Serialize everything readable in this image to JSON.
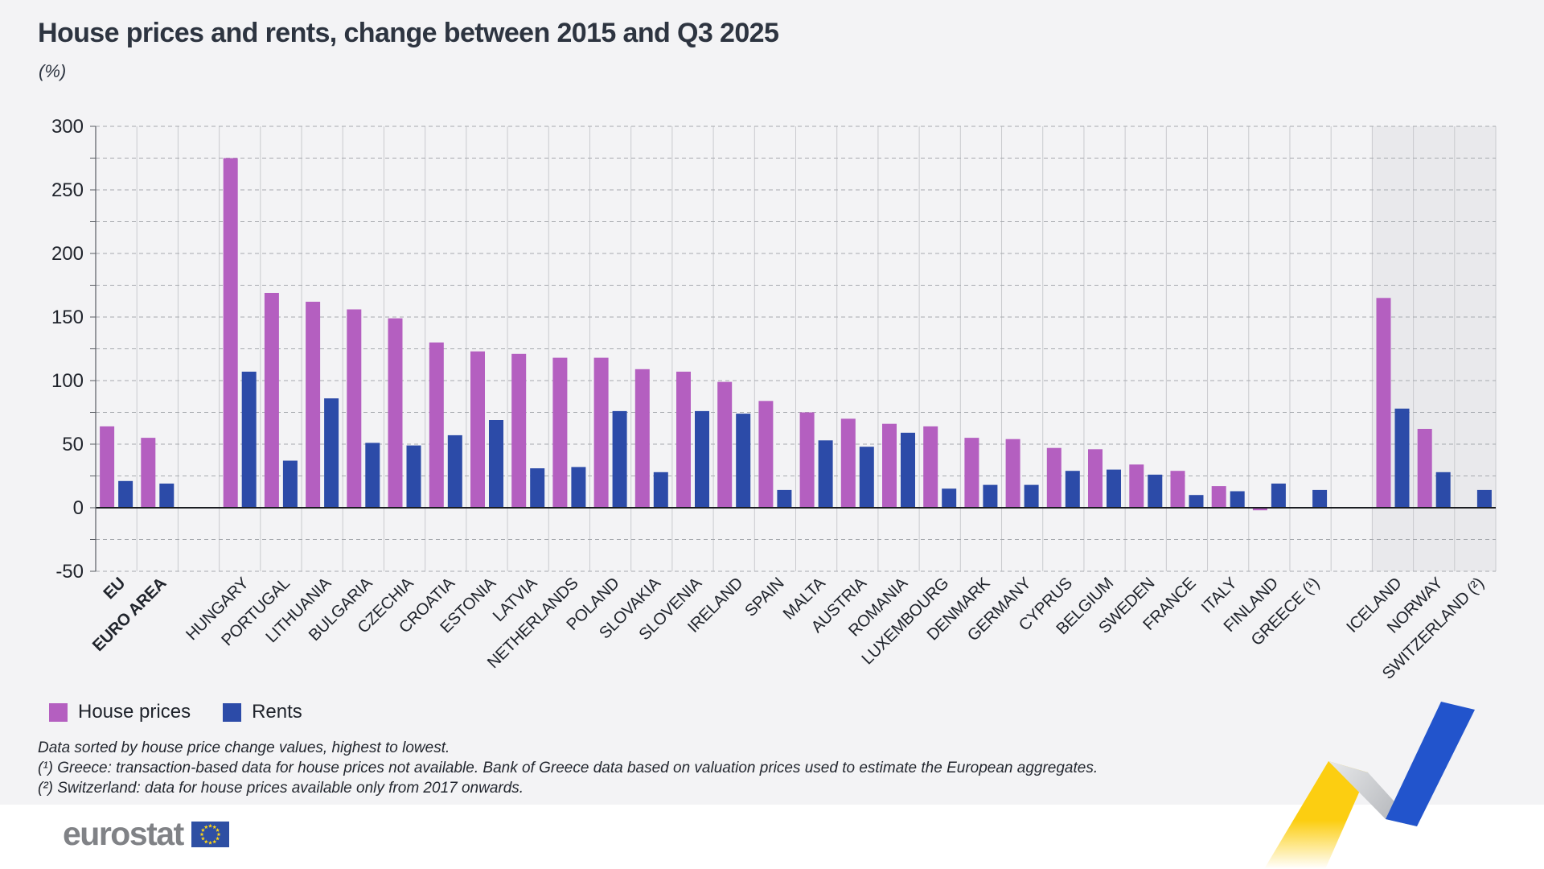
{
  "title": "House prices and rents, change between 2015 and Q3 2025",
  "subtitle": "(%)",
  "legend": [
    {
      "id": "house",
      "label": "House prices",
      "color": "#B45FC0"
    },
    {
      "id": "rents",
      "label": "Rents",
      "color": "#2C4BA8"
    }
  ],
  "footnotes": [
    "Data sorted by house price change values, highest to lowest.",
    "(¹) Greece: transaction-based data for house prices not available. Bank of Greece data based on valuation prices used to estimate the European aggregates.",
    "(²) Switzerland: data for house prices available only from 2017 onwards."
  ],
  "logo": {
    "text": "eurostat"
  },
  "chart_data": {
    "type": "bar",
    "title": "House prices and rents, change between 2015 and Q3 2025",
    "ylabel": "(%)",
    "ylim": [
      -50,
      300
    ],
    "ytick_step": 50,
    "grid_minor_step": 25,
    "legend_position": "bottom-left",
    "colors": {
      "house": "#B45FC0",
      "rents": "#2C4BA8"
    },
    "efta_shade": "#E9E9EC",
    "series_names": [
      "House prices",
      "Rents"
    ],
    "categories": [
      {
        "label": "EU",
        "group": "aggregate",
        "house": 64,
        "rents": 21
      },
      {
        "label": "EURO AREA",
        "group": "aggregate",
        "house": 55,
        "rents": 19
      },
      {
        "label": "HUNGARY",
        "group": "eu",
        "house": 275,
        "rents": 107
      },
      {
        "label": "PORTUGAL",
        "group": "eu",
        "house": 169,
        "rents": 37
      },
      {
        "label": "LITHUANIA",
        "group": "eu",
        "house": 162,
        "rents": 86
      },
      {
        "label": "BULGARIA",
        "group": "eu",
        "house": 156,
        "rents": 51
      },
      {
        "label": "CZECHIA",
        "group": "eu",
        "house": 149,
        "rents": 49
      },
      {
        "label": "CROATIA",
        "group": "eu",
        "house": 130,
        "rents": 57
      },
      {
        "label": "ESTONIA",
        "group": "eu",
        "house": 123,
        "rents": 69
      },
      {
        "label": "LATVIA",
        "group": "eu",
        "house": 121,
        "rents": 31
      },
      {
        "label": "NETHERLANDS",
        "group": "eu",
        "house": 118,
        "rents": 32
      },
      {
        "label": "POLAND",
        "group": "eu",
        "house": 118,
        "rents": 76
      },
      {
        "label": "SLOVAKIA",
        "group": "eu",
        "house": 109,
        "rents": 28
      },
      {
        "label": "SLOVENIA",
        "group": "eu",
        "house": 107,
        "rents": 76
      },
      {
        "label": "IRELAND",
        "group": "eu",
        "house": 99,
        "rents": 74
      },
      {
        "label": "SPAIN",
        "group": "eu",
        "house": 84,
        "rents": 14
      },
      {
        "label": "MALTA",
        "group": "eu",
        "house": 75,
        "rents": 53
      },
      {
        "label": "AUSTRIA",
        "group": "eu",
        "house": 70,
        "rents": 48
      },
      {
        "label": "ROMANIA",
        "group": "eu",
        "house": 66,
        "rents": 59
      },
      {
        "label": "LUXEMBOURG",
        "group": "eu",
        "house": 64,
        "rents": 15
      },
      {
        "label": "DENMARK",
        "group": "eu",
        "house": 55,
        "rents": 18
      },
      {
        "label": "GERMANY",
        "group": "eu",
        "house": 54,
        "rents": 18
      },
      {
        "label": "CYPRUS",
        "group": "eu",
        "house": 47,
        "rents": 29
      },
      {
        "label": "BELGIUM",
        "group": "eu",
        "house": 46,
        "rents": 30
      },
      {
        "label": "SWEDEN",
        "group": "eu",
        "house": 34,
        "rents": 26
      },
      {
        "label": "FRANCE",
        "group": "eu",
        "house": 29,
        "rents": 10
      },
      {
        "label": "ITALY",
        "group": "eu",
        "house": 17,
        "rents": 13
      },
      {
        "label": "FINLAND",
        "group": "eu",
        "house": -2,
        "rents": 19
      },
      {
        "label": "GREECE (¹)",
        "group": "eu",
        "house": null,
        "rents": 14
      },
      {
        "label": "ICELAND",
        "group": "efta",
        "house": 165,
        "rents": 78
      },
      {
        "label": "NORWAY",
        "group": "efta",
        "house": 62,
        "rents": 28
      },
      {
        "label": "SWITZERLAND (²)",
        "group": "efta",
        "house": null,
        "rents": 14
      }
    ]
  }
}
